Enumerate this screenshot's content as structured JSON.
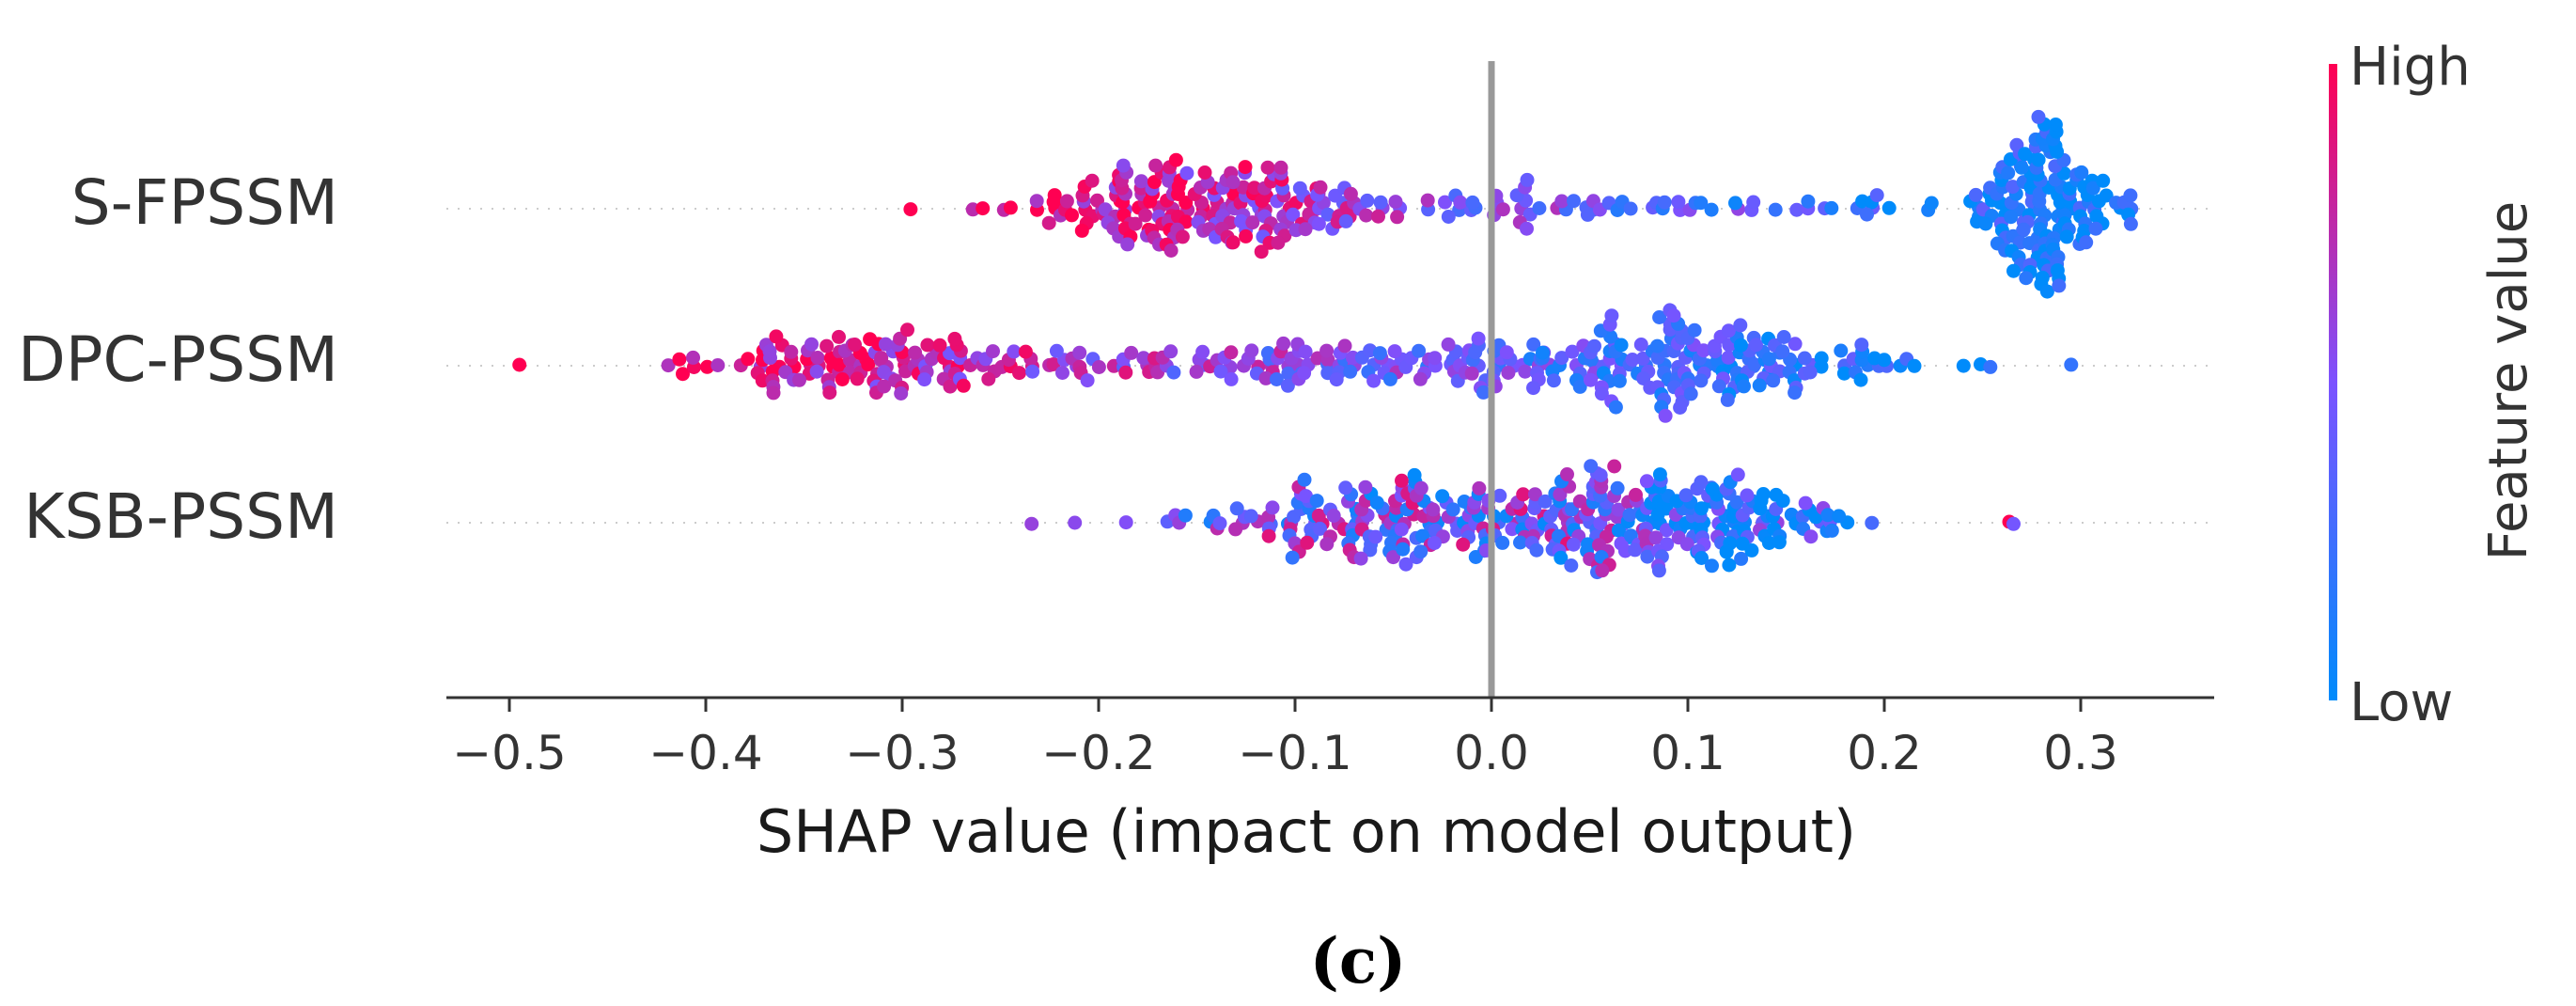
{
  "chart_data": {
    "type": "scatter",
    "subtype": "shap-beeswarm",
    "panel_label": "(c)",
    "xlabel": "SHAP value (impact on model output)",
    "ylabel": "",
    "xlim": [
      -0.535,
      0.365
    ],
    "xticks": [
      -0.5,
      -0.4,
      -0.3,
      -0.2,
      -0.1,
      0.0,
      0.1,
      0.2,
      0.3
    ],
    "xtick_labels": [
      "−0.5",
      "−0.4",
      "−0.3",
      "−0.2",
      "−0.1",
      "0.0",
      "0.1",
      "0.2",
      "0.3"
    ],
    "zero_line": 0.0,
    "grid": false,
    "features": [
      {
        "name": "S-FPSSM",
        "x_range": [
          -0.295,
          0.325
        ],
        "density_peaks": [
          {
            "x": -0.14,
            "weight": 1.0,
            "spread": 0.045
          },
          {
            "x": 0.28,
            "weight": 0.75,
            "spread": 0.02
          },
          {
            "x": 0.07,
            "weight": 0.35,
            "spread": 0.1
          }
        ],
        "sample_count": 420,
        "color_trend": "low feature values give positive SHAP; high feature values give negative SHAP"
      },
      {
        "name": "DPC-PSSM",
        "x_range": [
          -0.495,
          0.295
        ],
        "density_peaks": [
          {
            "x": 0.09,
            "weight": 1.0,
            "spread": 0.06
          },
          {
            "x": -0.32,
            "weight": 0.45,
            "spread": 0.05
          },
          {
            "x": -0.1,
            "weight": 0.4,
            "spread": 0.08
          }
        ],
        "sample_count": 440,
        "color_trend": "low feature values give positive SHAP; high feature values give strongly negative SHAP"
      },
      {
        "name": "KSB-PSSM",
        "x_range": [
          -0.235,
          0.265
        ],
        "density_peaks": [
          {
            "x": -0.02,
            "weight": 1.0,
            "spread": 0.07
          },
          {
            "x": 0.1,
            "weight": 0.55,
            "spread": 0.04
          }
        ],
        "sample_count": 380,
        "color_trend": "mixed colors around zero; low values slightly positive"
      }
    ],
    "colorbar": {
      "label": "Feature value",
      "high_label": "High",
      "low_label": "Low",
      "high_color": "#ff0052",
      "low_color": "#008bfb"
    },
    "colors": {
      "zero_line": "#999999",
      "axis": "#333333",
      "text": "#333333",
      "row_guide": "#cccccc"
    }
  }
}
